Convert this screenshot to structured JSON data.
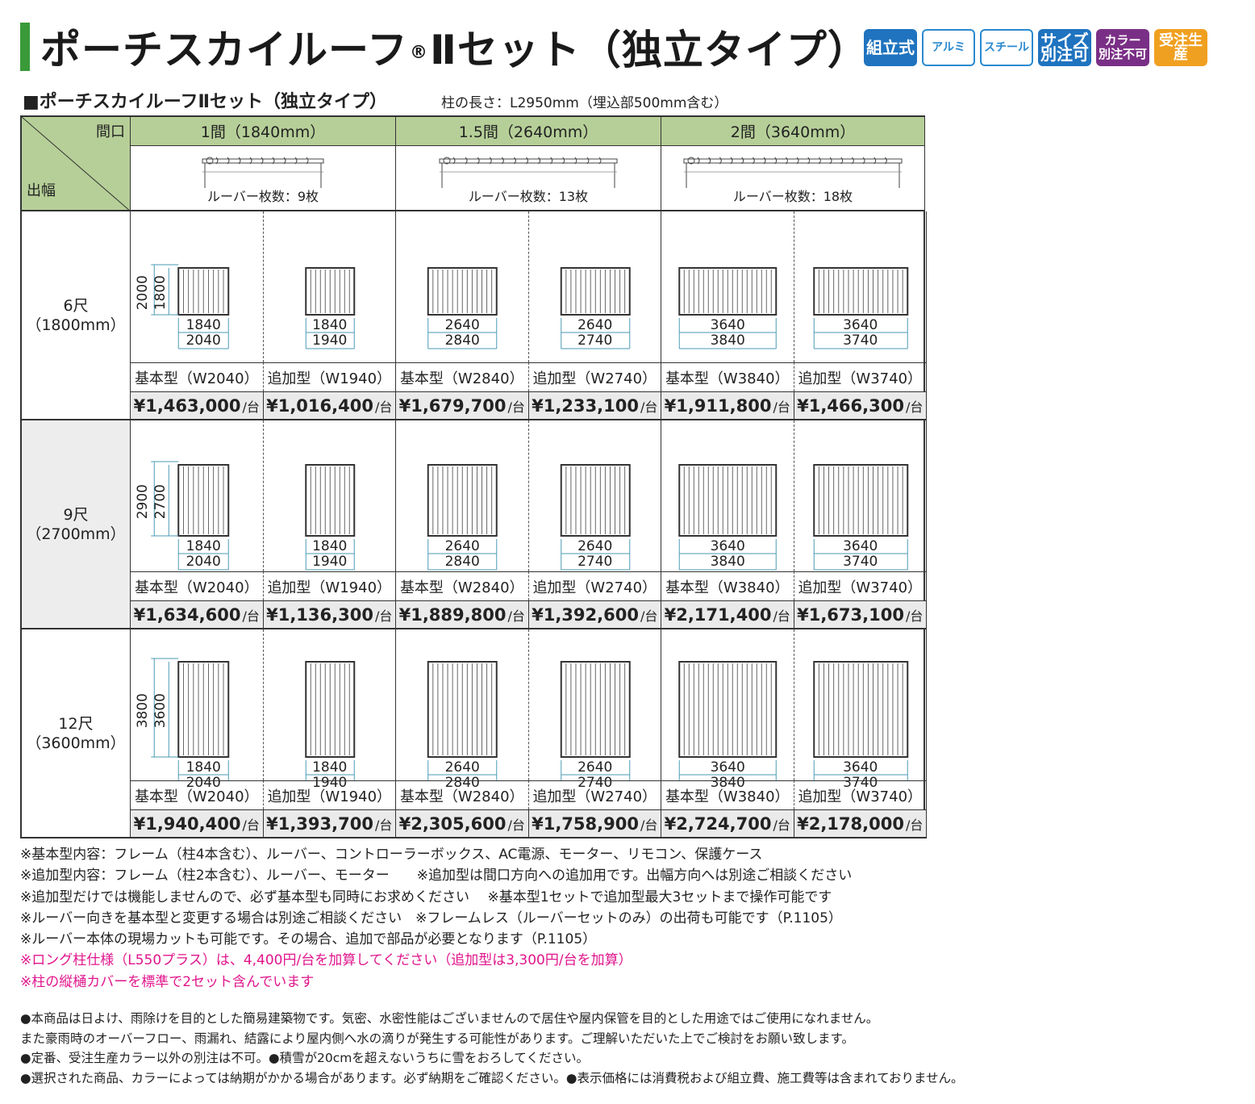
{
  "title": {
    "main": "ポーチスカイルーフ",
    "reg": "®",
    "suffix": "Ⅱセット（独立タイプ）"
  },
  "badges": [
    {
      "label": "組立式",
      "style": "b-blue"
    },
    {
      "label": "アルミ",
      "style": "b-outline"
    },
    {
      "label": "スチール",
      "style": "b-outline"
    },
    {
      "label": "サイズ\n別注可",
      "style": "b-blue"
    },
    {
      "label": "カラー\n別注不可",
      "style": "b-purple"
    },
    {
      "label": "受注生産",
      "style": "b-orange"
    }
  ],
  "subhead": "■ポーチスカイルーフⅡセット（独立タイプ）",
  "subnote": "柱の長さ：L2950mm（埋込部500mm含む）",
  "table": {
    "corner_top": "間口",
    "corner_bottom": "出幅",
    "columns": [
      {
        "label": "1間（1840mm）",
        "louver": "ルーバー枚数：9枚"
      },
      {
        "label": "1.5間（2640mm）",
        "louver": "ルーバー枚数：13枚"
      },
      {
        "label": "2間（3640mm）",
        "louver": "ルーバー枚数：18枚"
      }
    ],
    "rows": [
      {
        "label1": "6尺",
        "label2": "（1800mm）",
        "h_outer": "2000",
        "h_inner": "1800",
        "cells": [
          {
            "w1": "1840",
            "w2": "2040",
            "type": "基本型（W2040）",
            "price": "¥1,463,000"
          },
          {
            "w1": "1840",
            "w2": "1940",
            "type": "追加型（W1940）",
            "price": "¥1,016,400"
          },
          {
            "w1": "2640",
            "w2": "2840",
            "type": "基本型（W2840）",
            "price": "¥1,679,700"
          },
          {
            "w1": "2640",
            "w2": "2740",
            "type": "追加型（W2740）",
            "price": "¥1,233,100"
          },
          {
            "w1": "3640",
            "w2": "3840",
            "type": "基本型（W3840）",
            "price": "¥1,911,800"
          },
          {
            "w1": "3640",
            "w2": "3740",
            "type": "追加型（W3740）",
            "price": "¥1,466,300"
          }
        ]
      },
      {
        "label1": "9尺",
        "label2": "（2700mm）",
        "h_outer": "2900",
        "h_inner": "2700",
        "cells": [
          {
            "w1": "1840",
            "w2": "2040",
            "type": "基本型（W2040）",
            "price": "¥1,634,600"
          },
          {
            "w1": "1840",
            "w2": "1940",
            "type": "追加型（W1940）",
            "price": "¥1,136,300"
          },
          {
            "w1": "2640",
            "w2": "2840",
            "type": "基本型（W2840）",
            "price": "¥1,889,800"
          },
          {
            "w1": "2640",
            "w2": "2740",
            "type": "追加型（W2740）",
            "price": "¥1,392,600"
          },
          {
            "w1": "3640",
            "w2": "3840",
            "type": "基本型（W3840）",
            "price": "¥2,171,400"
          },
          {
            "w1": "3640",
            "w2": "3740",
            "type": "追加型（W3740）",
            "price": "¥1,673,100"
          }
        ]
      },
      {
        "label1": "12尺",
        "label2": "（3600mm）",
        "h_outer": "3800",
        "h_inner": "3600",
        "cells": [
          {
            "w1": "1840",
            "w2": "2040",
            "type": "基本型（W2040）",
            "price": "¥1,940,400"
          },
          {
            "w1": "1840",
            "w2": "1940",
            "type": "追加型（W1940）",
            "price": "¥1,393,700"
          },
          {
            "w1": "2640",
            "w2": "2840",
            "type": "基本型（W2840）",
            "price": "¥2,305,600"
          },
          {
            "w1": "2640",
            "w2": "2740",
            "type": "追加型（W2740）",
            "price": "¥1,758,900"
          },
          {
            "w1": "3640",
            "w2": "3840",
            "type": "基本型（W3840）",
            "price": "¥2,724,700"
          },
          {
            "w1": "3640",
            "w2": "3740",
            "type": "追加型（W3740）",
            "price": "¥2,178,000"
          }
        ]
      }
    ],
    "price_unit": "/台"
  },
  "notes": [
    {
      "text": "※基本型内容：フレーム（柱4本含む）、ルーバー、コントローラーボックス、AC電源、モーター、リモコン、保護ケース",
      "pink": false
    },
    {
      "text": "※追加型内容：フレーム（柱2本含む）、ルーバー、モーター　　※追加型は間口方向への追加用です。出幅方向へは別途ご相談ください",
      "pink": false
    },
    {
      "text": "※追加型だけでは機能しませんので、必ず基本型も同時にお求めください　 ※基本型1セットで追加型最大3セットまで操作可能です",
      "pink": false
    },
    {
      "text": "※ルーバー向きを基本型と変更する場合は別途ご相談ください　※フレームレス（ルーバーセットのみ）の出荷も可能です（P.1105）",
      "pink": false
    },
    {
      "text": "※ルーバー本体の現場カットも可能です。その場合、追加で部品が必要となります（P.1105）",
      "pink": false
    },
    {
      "text": "※ロング柱仕様（L550プラス）は、4,400円/台を加算してください（追加型は3,300円/台を加算）",
      "pink": true
    },
    {
      "text": "※柱の縦樋カバーを標準で2セット含んでいます",
      "pink": true
    }
  ],
  "bottom_notes": [
    "●本商品は日よけ、雨除けを目的とした簡易建築物です。気密、水密性能はございませんので居住や屋内保管を目的とした用途ではご使用になれません。",
    "また豪雨時のオーバーフロー、雨漏れ、結露により屋内側へ水の滴りが発生する可能性があります。ご理解いただいた上でご検討をお願い致します。",
    "●定番、受注生産カラー以外の別注は不可。●積雪が20cmを超えないうちに雪をおろしてください。",
    "●選択された商品、カラーによっては納期がかかる場合があります。必ず納期をご確認ください。●表示価格には消費税および組立費、施工費等は含まれておりません。"
  ]
}
